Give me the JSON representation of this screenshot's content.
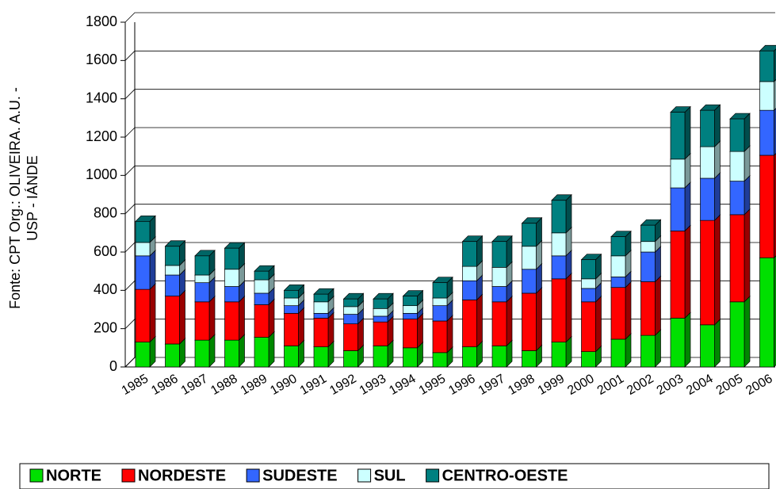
{
  "chart_data": {
    "type": "bar",
    "stacked": true,
    "ylabel": [
      "Fonte: CPT   Org.: OLIVEIRA. A.U. -",
      "USP - IÁNDE"
    ],
    "categories": [
      "1985",
      "1986",
      "1987",
      "1988",
      "1989",
      "1990",
      "1991",
      "1992",
      "1993",
      "1994",
      "1995",
      "1996",
      "1997",
      "1998",
      "1999",
      "2000",
      "2001",
      "2002",
      "2003",
      "2004",
      "2005",
      "2006"
    ],
    "series": [
      {
        "name": "NORTE",
        "color": "#00e000",
        "values": [
          130,
          120,
          140,
          140,
          155,
          110,
          105,
          85,
          110,
          100,
          75,
          105,
          110,
          85,
          130,
          80,
          145,
          165,
          255,
          220,
          340,
          570
        ]
      },
      {
        "name": "NORDESTE",
        "color": "#ff0000",
        "values": [
          275,
          250,
          200,
          200,
          170,
          170,
          150,
          140,
          125,
          150,
          165,
          245,
          230,
          300,
          330,
          260,
          270,
          280,
          455,
          545,
          455,
          535
        ]
      },
      {
        "name": "SUDESTE",
        "color": "#3366ff",
        "values": [
          175,
          110,
          100,
          80,
          60,
          40,
          25,
          50,
          30,
          30,
          80,
          100,
          80,
          125,
          120,
          70,
          55,
          155,
          225,
          220,
          175,
          235
        ]
      },
      {
        "name": "SUL",
        "color": "#ccffff",
        "values": [
          70,
          50,
          40,
          90,
          70,
          40,
          60,
          40,
          40,
          40,
          40,
          75,
          100,
          120,
          120,
          50,
          110,
          55,
          150,
          165,
          155,
          150
        ]
      },
      {
        "name": "CENTRO-OESTE",
        "color": "#008080",
        "values": [
          110,
          100,
          100,
          110,
          45,
          40,
          40,
          40,
          50,
          50,
          80,
          130,
          135,
          120,
          170,
          100,
          100,
          85,
          245,
          190,
          170,
          160
        ]
      }
    ],
    "ylim": [
      0,
      1800
    ],
    "yticks": [
      0,
      200,
      400,
      600,
      800,
      1000,
      1200,
      1400,
      1600,
      1800
    ],
    "grid": true,
    "legend": "bottom"
  }
}
